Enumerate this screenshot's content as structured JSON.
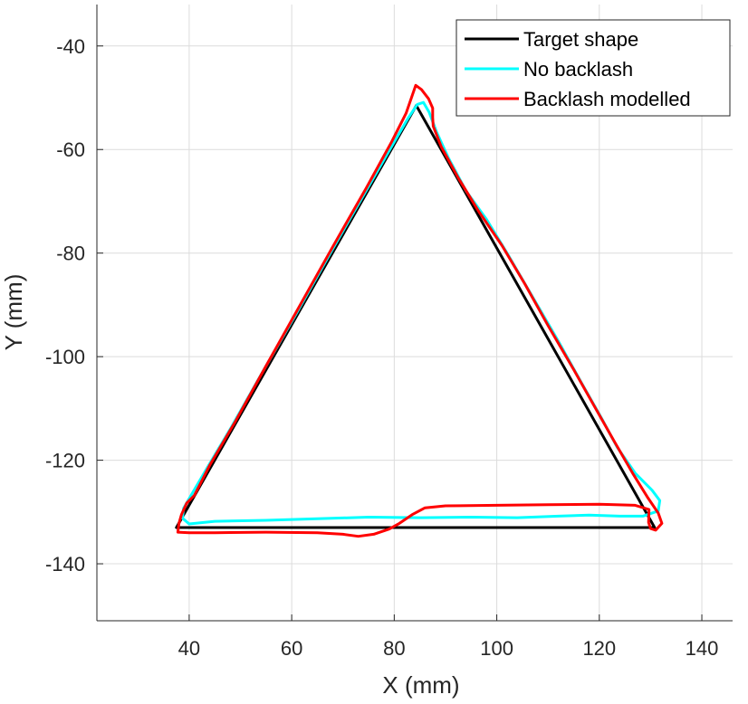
{
  "chart_data": {
    "type": "line",
    "xlabel": "X (mm)",
    "ylabel": "Y (mm)",
    "xlim": [
      22,
      146
    ],
    "ylim": [
      -151,
      -32
    ],
    "xticks": [
      40,
      60,
      80,
      100,
      120,
      140
    ],
    "yticks": [
      -40,
      -60,
      -80,
      -100,
      -120,
      -140
    ],
    "grid": true,
    "legend_position": "top-right",
    "series": [
      {
        "name": "Target shape",
        "color": "#000000",
        "points": [
          [
            37.5,
            -133
          ],
          [
            84.3,
            -51.5
          ],
          [
            130.8,
            -133
          ],
          [
            37.5,
            -133
          ]
        ]
      },
      {
        "name": "No backlash",
        "color": "#00FFFF",
        "points": [
          [
            40,
            -132.3
          ],
          [
            38.7,
            -131.2
          ],
          [
            38.9,
            -129.3
          ],
          [
            40.7,
            -126.2
          ],
          [
            43.5,
            -121.5
          ],
          [
            48,
            -114
          ],
          [
            54,
            -103.5
          ],
          [
            61,
            -91.5
          ],
          [
            68,
            -79.2
          ],
          [
            74.5,
            -68
          ],
          [
            79.8,
            -58.9
          ],
          [
            82.8,
            -53.8
          ],
          [
            84.5,
            -51.3
          ],
          [
            85.7,
            -50.9
          ],
          [
            86.8,
            -52.8
          ],
          [
            88.2,
            -56.5
          ],
          [
            90.5,
            -61.5
          ],
          [
            94,
            -68
          ],
          [
            98,
            -73.5
          ],
          [
            102,
            -80
          ],
          [
            107,
            -88.5
          ],
          [
            112,
            -97
          ],
          [
            116.5,
            -105
          ],
          [
            120.5,
            -112
          ],
          [
            123.5,
            -117.5
          ],
          [
            127,
            -122.5
          ],
          [
            130.3,
            -125.8
          ],
          [
            131.8,
            -127.8
          ],
          [
            131.5,
            -129.8
          ],
          [
            128.5,
            -130.8
          ],
          [
            124,
            -130.8
          ],
          [
            118,
            -130.6
          ],
          [
            112,
            -130.8
          ],
          [
            104,
            -131.1
          ],
          [
            95,
            -131
          ],
          [
            85,
            -131.1
          ],
          [
            75,
            -131
          ],
          [
            65,
            -131.3
          ],
          [
            55,
            -131.6
          ],
          [
            45,
            -131.8
          ],
          [
            40,
            -132.3
          ]
        ]
      },
      {
        "name": "Backlash modelled",
        "color": "#FF0000",
        "points": [
          [
            37.8,
            -133.9
          ],
          [
            38,
            -132.2
          ],
          [
            38.5,
            -130.5
          ],
          [
            39.5,
            -128.3
          ],
          [
            41,
            -126.8
          ],
          [
            44,
            -121
          ],
          [
            49,
            -112.5
          ],
          [
            55,
            -101.8
          ],
          [
            61.5,
            -90.3
          ],
          [
            68,
            -78.8
          ],
          [
            74.5,
            -67.5
          ],
          [
            79.5,
            -58.5
          ],
          [
            82.3,
            -53
          ],
          [
            83.8,
            -48.7
          ],
          [
            84.2,
            -47.6
          ],
          [
            85.3,
            -48.4
          ],
          [
            86.7,
            -50.2
          ],
          [
            87.5,
            -52
          ],
          [
            87.5,
            -53.8
          ],
          [
            87.6,
            -55.5
          ],
          [
            89.2,
            -59.5
          ],
          [
            92.5,
            -65.5
          ],
          [
            96.5,
            -72
          ],
          [
            101,
            -78.5
          ],
          [
            105.5,
            -86
          ],
          [
            110,
            -94
          ],
          [
            115,
            -102.5
          ],
          [
            119,
            -109.5
          ],
          [
            123,
            -116.5
          ],
          [
            126.5,
            -122.5
          ],
          [
            129.5,
            -127.3
          ],
          [
            131.5,
            -130.2
          ],
          [
            132.2,
            -132.2
          ],
          [
            131,
            -133.5
          ],
          [
            130,
            -133.2
          ],
          [
            129.6,
            -132
          ],
          [
            129.7,
            -129.5
          ],
          [
            127,
            -128.7
          ],
          [
            120,
            -128.5
          ],
          [
            110,
            -128.6
          ],
          [
            100,
            -128.7
          ],
          [
            90,
            -128.8
          ],
          [
            86,
            -129.2
          ],
          [
            83.5,
            -130.5
          ],
          [
            81,
            -132.2
          ],
          [
            79,
            -133.3
          ],
          [
            76,
            -134.3
          ],
          [
            73,
            -134.7
          ],
          [
            70,
            -134.3
          ],
          [
            65,
            -134
          ],
          [
            55,
            -133.9
          ],
          [
            45,
            -134
          ],
          [
            40,
            -134
          ],
          [
            37.8,
            -133.9
          ]
        ]
      }
    ]
  }
}
